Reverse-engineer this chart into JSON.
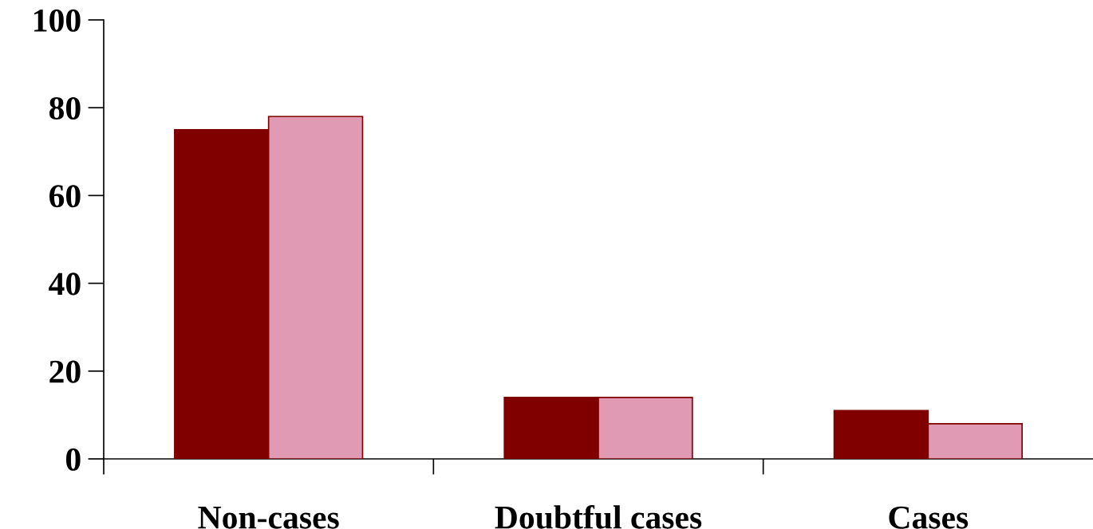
{
  "chart_data": {
    "type": "bar",
    "categories": [
      "Non-cases",
      "Doubtful cases",
      "Cases"
    ],
    "series": [
      {
        "color": "#800000",
        "values": [
          75,
          14,
          11
        ]
      },
      {
        "color": "#e09ab4",
        "values": [
          78,
          14,
          8
        ]
      }
    ],
    "ylim": [
      0,
      100
    ],
    "yticks": [
      0,
      20,
      40,
      60,
      80,
      100
    ],
    "grid": false,
    "legend": false
  }
}
